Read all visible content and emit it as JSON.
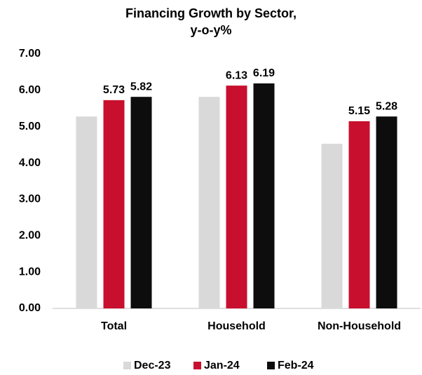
{
  "chart_data": {
    "type": "bar",
    "title": [
      "Financing Growth by Sector,",
      "y-o-y%"
    ],
    "categories": [
      "Total",
      "Household",
      "Non-Household"
    ],
    "series": [
      {
        "name": "Dec-23",
        "color": "#d9d9d9",
        "values": [
          5.28,
          5.82,
          4.53
        ],
        "show_labels": false
      },
      {
        "name": "Jan-24",
        "color": "#c8102e",
        "values": [
          5.73,
          6.13,
          5.15
        ],
        "show_labels": true
      },
      {
        "name": "Feb-24",
        "color": "#0d0d0d",
        "values": [
          5.82,
          6.19,
          5.28
        ],
        "show_labels": true
      }
    ],
    "ylim": [
      0,
      7
    ],
    "yticks": [
      {
        "value": 0,
        "label": "0.00"
      },
      {
        "value": 1,
        "label": "1.00"
      },
      {
        "value": 2,
        "label": "2.00"
      },
      {
        "value": 3,
        "label": "3.00"
      },
      {
        "value": 4,
        "label": "4.00"
      },
      {
        "value": 5,
        "label": "5.00"
      },
      {
        "value": 6,
        "label": "6.00"
      },
      {
        "value": 7,
        "label": "7.00"
      }
    ],
    "grid": false,
    "legend": "bottom"
  }
}
